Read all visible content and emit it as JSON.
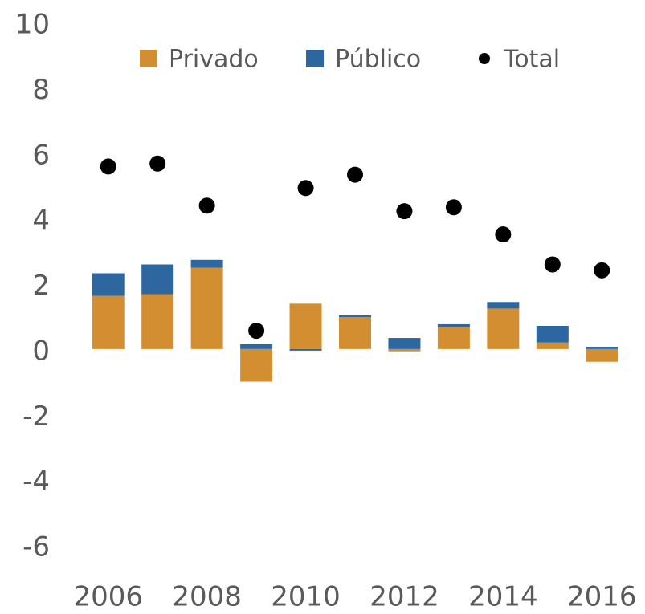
{
  "chart_data": {
    "type": "bar",
    "stacked": true,
    "categories": [
      "2006",
      null,
      "2008",
      null,
      "2010",
      null,
      "2012",
      null,
      "2014",
      null,
      "2016"
    ],
    "series": [
      {
        "name": "Privado",
        "color": "#d48e32",
        "values": [
          1.63,
          1.68,
          2.49,
          -1.0,
          1.39,
          0.98,
          -0.07,
          0.66,
          1.24,
          0.2,
          -0.39
        ]
      },
      {
        "name": "Público",
        "color": "#2e67a0",
        "values": [
          0.69,
          0.91,
          0.24,
          0.15,
          -0.05,
          0.05,
          0.34,
          0.1,
          0.2,
          0.51,
          0.07
        ]
      },
      {
        "name": "Total",
        "color": "#000000",
        "type": "scatter",
        "values": [
          5.59,
          5.68,
          4.39,
          0.56,
          4.93,
          5.34,
          4.22,
          4.34,
          3.51,
          2.59,
          2.41
        ]
      }
    ],
    "ylim": [
      -6,
      10
    ],
    "yticks": [
      -6,
      -4,
      -2,
      0,
      2,
      4,
      6,
      8,
      10
    ],
    "grid": false,
    "legend": "top"
  }
}
